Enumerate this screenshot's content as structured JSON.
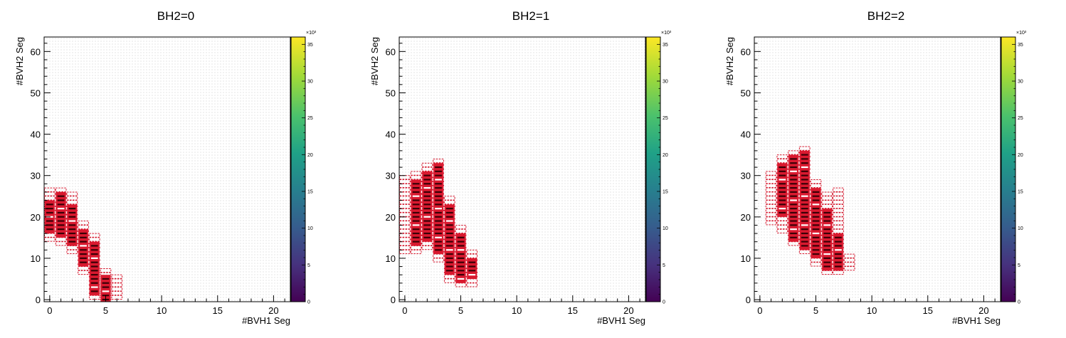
{
  "colorbar": {
    "exponent_label": "×10³",
    "ticks": [
      0,
      5,
      10,
      15,
      20,
      25,
      30,
      35
    ],
    "range": [
      0,
      36
    ]
  },
  "chart_data": [
    {
      "type": "heatmap",
      "title": "BH2=0",
      "xlabel": "#BVH1 Seg",
      "ylabel": "#BVH2 Seg",
      "xlim": [
        -0.5,
        21.5
      ],
      "ylim": [
        -0.5,
        63.5
      ],
      "xticks": [
        0,
        5,
        10,
        15,
        20
      ],
      "yticks": [
        0,
        10,
        20,
        30,
        40,
        50,
        60
      ],
      "cells": [
        {
          "x": 0,
          "y0": 14,
          "y1": 27
        },
        {
          "x": 1,
          "y0": 13,
          "y1": 27
        },
        {
          "x": 2,
          "y0": 11,
          "y1": 26
        },
        {
          "x": 3,
          "y0": 6,
          "y1": 19
        },
        {
          "x": 4,
          "y0": 0,
          "y1": 16
        },
        {
          "x": 5,
          "y0": -1,
          "y1": 7
        },
        {
          "x": 6,
          "y0": 0,
          "y1": 6
        }
      ],
      "red": [
        {
          "x": 0,
          "y0": 16,
          "y1": 24
        },
        {
          "x": 1,
          "y0": 15,
          "y1": 26
        },
        {
          "x": 2,
          "y0": 13,
          "y1": 23
        },
        {
          "x": 3,
          "y0": 8,
          "y1": 17
        },
        {
          "x": 4,
          "y0": 1,
          "y1": 14
        },
        {
          "x": 5,
          "y0": -0.5,
          "y1": 6
        }
      ]
    },
    {
      "type": "heatmap",
      "title": "BH2=1",
      "xlabel": "#BVH1 Seg",
      "ylabel": "#BVH2 Seg",
      "xlim": [
        -0.5,
        21.5
      ],
      "ylim": [
        -0.5,
        63.5
      ],
      "xticks": [
        0,
        5,
        10,
        15,
        20
      ],
      "yticks": [
        0,
        10,
        20,
        30,
        40,
        50,
        60
      ],
      "cells": [
        {
          "x": 0,
          "y0": 11,
          "y1": 30
        },
        {
          "x": 1,
          "y0": 11,
          "y1": 31
        },
        {
          "x": 2,
          "y0": 12,
          "y1": 33
        },
        {
          "x": 3,
          "y0": 9,
          "y1": 34
        },
        {
          "x": 4,
          "y0": 4,
          "y1": 25
        },
        {
          "x": 5,
          "y0": 3,
          "y1": 18
        },
        {
          "x": 6,
          "y0": 3,
          "y1": 12
        }
      ],
      "red": [
        {
          "x": 1,
          "y0": 13,
          "y1": 29
        },
        {
          "x": 2,
          "y0": 14,
          "y1": 31
        },
        {
          "x": 3,
          "y0": 11,
          "y1": 33
        },
        {
          "x": 4,
          "y0": 6,
          "y1": 23
        },
        {
          "x": 5,
          "y0": 4,
          "y1": 16
        },
        {
          "x": 6,
          "y0": 5,
          "y1": 10
        }
      ]
    },
    {
      "type": "heatmap",
      "title": "BH2=2",
      "xlabel": "#BVH1 Seg",
      "ylabel": "#BVH2 Seg",
      "xlim": [
        -0.5,
        21.5
      ],
      "ylim": [
        -0.5,
        63.5
      ],
      "xticks": [
        0,
        5,
        10,
        15,
        20
      ],
      "yticks": [
        0,
        10,
        20,
        30,
        40,
        50,
        60
      ],
      "cells": [
        {
          "x": 1,
          "y0": 18,
          "y1": 31
        },
        {
          "x": 2,
          "y0": 16,
          "y1": 35
        },
        {
          "x": 3,
          "y0": 13,
          "y1": 36
        },
        {
          "x": 4,
          "y0": 11,
          "y1": 37
        },
        {
          "x": 5,
          "y0": 8,
          "y1": 29
        },
        {
          "x": 6,
          "y0": 6,
          "y1": 26
        },
        {
          "x": 7,
          "y0": 6,
          "y1": 27
        },
        {
          "x": 8,
          "y0": 7,
          "y1": 11
        }
      ],
      "red": [
        {
          "x": 2,
          "y0": 20,
          "y1": 33
        },
        {
          "x": 3,
          "y0": 14,
          "y1": 35
        },
        {
          "x": 4,
          "y0": 12,
          "y1": 36
        },
        {
          "x": 5,
          "y0": 10,
          "y1": 27
        },
        {
          "x": 6,
          "y0": 7,
          "y1": 22
        },
        {
          "x": 7,
          "y0": 7,
          "y1": 16
        }
      ]
    }
  ]
}
